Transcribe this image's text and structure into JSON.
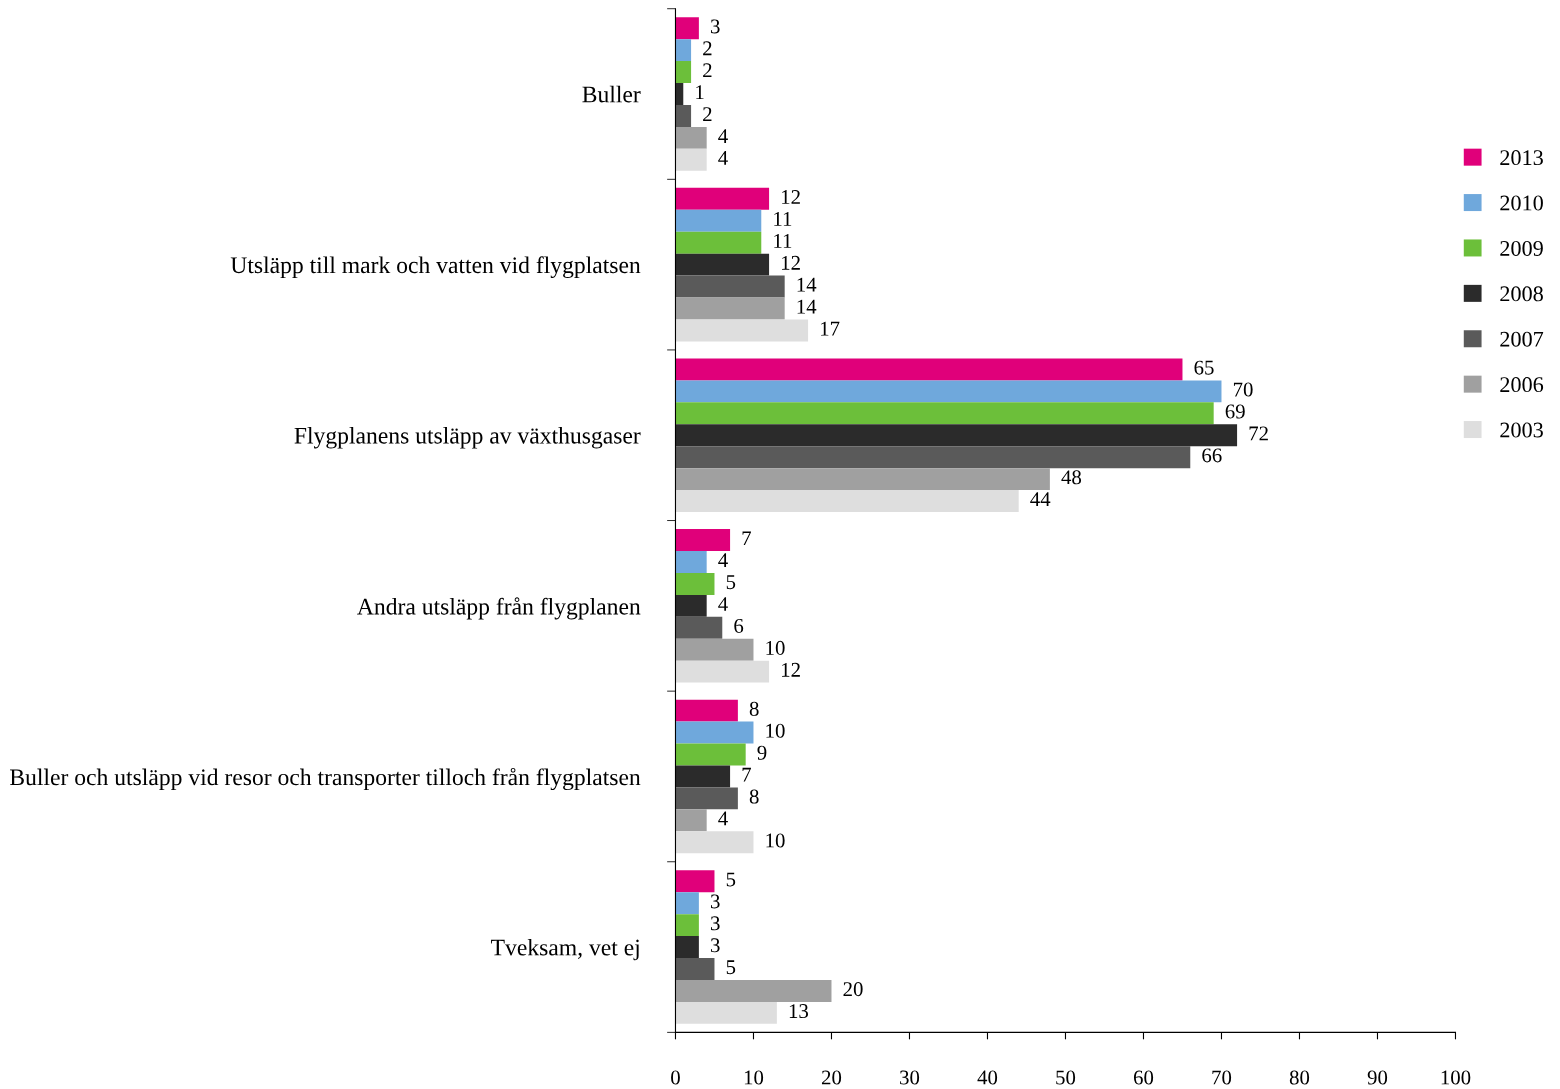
{
  "chart_data": {
    "type": "bar",
    "orientation": "horizontal",
    "categories": [
      "Buller",
      "Utsläpp till mark och vatten vid flygplatsen",
      "Flygplanens utsläpp av växthusgaser",
      "Andra utsläpp från flygplanen",
      "Buller och utsläpp vid resor och transporter tilloch från flygplatsen",
      "Tveksam, vet ej"
    ],
    "series": [
      {
        "name": "2013",
        "color": "#e0007a",
        "values": [
          3,
          12,
          65,
          7,
          8,
          5
        ]
      },
      {
        "name": "2010",
        "color": "#6fa8dc",
        "values": [
          2,
          11,
          70,
          4,
          10,
          3
        ]
      },
      {
        "name": "2009",
        "color": "#6cbf3a",
        "values": [
          2,
          11,
          69,
          5,
          9,
          3
        ]
      },
      {
        "name": "2008",
        "color": "#2b2b2b",
        "values": [
          1,
          12,
          72,
          4,
          7,
          3
        ]
      },
      {
        "name": "2007",
        "color": "#5a5a5a",
        "values": [
          2,
          14,
          66,
          6,
          8,
          5
        ]
      },
      {
        "name": "2006",
        "color": "#a0a0a0",
        "values": [
          4,
          14,
          48,
          10,
          4,
          20
        ]
      },
      {
        "name": "2003",
        "color": "#dedede",
        "values": [
          4,
          17,
          44,
          12,
          10,
          13
        ]
      }
    ],
    "xlim": [
      0,
      100
    ],
    "xticks": [
      0,
      10,
      20,
      30,
      40,
      50,
      60,
      70,
      80,
      90,
      100
    ],
    "data_labels": true,
    "grid": false,
    "legend": "right"
  }
}
